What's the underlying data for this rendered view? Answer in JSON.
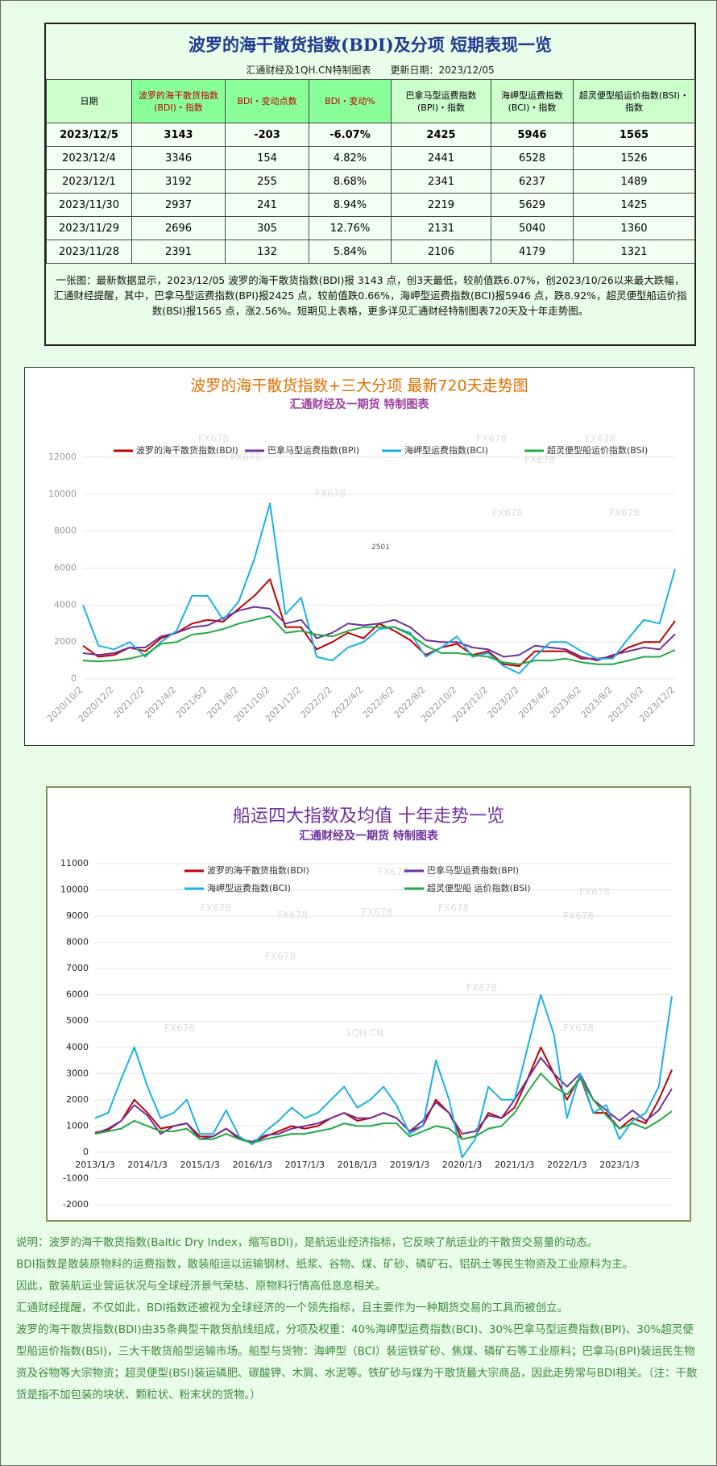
{
  "header": {
    "title": "波罗的海干散货指数(BDI)及分项  短期表现一览",
    "subtitle": "汇通财经及1QH.CN特制图表",
    "updated": "更新日期：2023/12/05"
  },
  "table": {
    "header": [
      "日期",
      "波罗的海干散货指数(BDI)・指数",
      "BDI・变动点数",
      "BDI・变动%",
      "巴拿马型运费指数(BPI)・指数",
      "海岬型运费指数(BCI)・指数",
      "超灵便型船运价指数(BSI)・指数"
    ],
    "rows": [
      [
        "2023/12/5",
        "3143",
        "-203",
        "-6.07%",
        "2425",
        "5946",
        "1565"
      ],
      [
        "2023/12/4",
        "3346",
        "154",
        "4.82%",
        "2441",
        "6528",
        "1526"
      ],
      [
        "2023/12/1",
        "3192",
        "255",
        "8.68%",
        "2341",
        "6237",
        "1489"
      ],
      [
        "2023/11/30",
        "2937",
        "241",
        "8.94%",
        "2219",
        "5629",
        "1425"
      ],
      [
        "2023/11/29",
        "2696",
        "305",
        "12.76%",
        "2131",
        "5040",
        "1360"
      ],
      [
        "2023/11/28",
        "2391",
        "132",
        "5.84%",
        "2106",
        "4179",
        "1321"
      ]
    ]
  },
  "summary": "一张图：最新数据显示，2023/12/05 波罗的海干散货指数(BDI)报 3143 点，创3天最低，较前值跌6.07%，创2023/10/26以来最大跌幅，汇通财经提醒，其中，巴拿马型运费指数(BPI)报2425 点，较前值跌0.66%，海岬型运费指数(BCI)报5946 点，跌8.92%，超灵便型船运价指数(BSI)报1565 点，涨2.56%。短期见上表格，更多详见汇通财经特制图表720天及十年走势图。",
  "chart_data": [
    {
      "type": "line",
      "title": "波罗的海干散货指数+三大分项  最新720天走势图",
      "subtitle": "汇通财经及一期货  特制图表",
      "watermarks": [
        "FX678"
      ],
      "annotations": [
        "2501"
      ],
      "categories": [
        "2020/10/2",
        null,
        "2020/12/2",
        null,
        "2021/2/2",
        null,
        "2021/4/2",
        null,
        "2021/6/2",
        null,
        "2021/8/2",
        null,
        "2021/10/2",
        null,
        "2021/12/2",
        null,
        "2022/2/2",
        null,
        "2022/4/2",
        null,
        "2022/6/2",
        null,
        "2022/8/2",
        null,
        "2022/10/2",
        null,
        "2022/12/2",
        null,
        "2023/2/2",
        null,
        "2023/4/2",
        null,
        "2023/6/2",
        null,
        "2023/8/2",
        null,
        "2023/10/2",
        null,
        "2023/12/2"
      ],
      "series": [
        {
          "name": "波罗的海干散货指数(BDI)",
          "color": "#c00000",
          "values": [
            1800,
            1200,
            1300,
            1700,
            1500,
            2200,
            2500,
            3000,
            3200,
            3100,
            3800,
            4500,
            5400,
            2800,
            2800,
            1600,
            2000,
            2500,
            2200,
            3000,
            2600,
            2100,
            1300,
            1700,
            1900,
            1300,
            1500,
            800,
            700,
            1500,
            1500,
            1500,
            1100,
            1100,
            1200,
            1700,
            2000,
            2000,
            3143
          ]
        },
        {
          "name": "巴拿马型运费指数(BPI)",
          "color": "#7030a0",
          "values": [
            1400,
            1300,
            1400,
            1700,
            1700,
            2300,
            2500,
            2800,
            2900,
            3300,
            3700,
            3900,
            3800,
            3000,
            3200,
            2200,
            2500,
            3000,
            2900,
            3000,
            3200,
            2800,
            2100,
            2000,
            2000,
            1700,
            1600,
            1200,
            1300,
            1800,
            1700,
            1600,
            1200,
            1000,
            1300,
            1500,
            1700,
            1600,
            2425
          ]
        },
        {
          "name": "海岬型运费指数(BCI)",
          "color": "#1ab0e8",
          "values": [
            4000,
            1800,
            1600,
            2000,
            1200,
            2000,
            2600,
            4500,
            4500,
            3200,
            4200,
            6500,
            9500,
            3500,
            4400,
            1200,
            1000,
            1700,
            2000,
            2700,
            2800,
            2500,
            1200,
            1700,
            2300,
            1200,
            1400,
            700,
            300,
            1200,
            2000,
            2000,
            1500,
            1100,
            1100,
            2200,
            3200,
            3000,
            5946
          ]
        },
        {
          "name": "超灵便型船运价指数(BSI)",
          "color": "#22aa44",
          "values": [
            1000,
            950,
            1000,
            1100,
            1300,
            1900,
            2000,
            2400,
            2500,
            2700,
            3000,
            3200,
            3400,
            2500,
            2600,
            2400,
            2300,
            2600,
            2800,
            2800,
            2800,
            2400,
            1800,
            1400,
            1400,
            1300,
            1200,
            900,
            800,
            1000,
            1000,
            1100,
            900,
            800,
            800,
            1000,
            1200,
            1200,
            1565
          ]
        }
      ],
      "ylim": [
        0,
        12000
      ],
      "yticks": [
        0,
        2000,
        4000,
        6000,
        8000,
        10000,
        12000
      ],
      "grid": true
    },
    {
      "type": "line",
      "title": "船运四大指数及均值 十年走势一览",
      "subtitle": "汇通财经及一期货 特制图表",
      "watermarks": [
        "FX678",
        "1QH.CN"
      ],
      "categories": [
        "2013/1/3",
        null,
        null,
        null,
        "2014/1/3",
        null,
        null,
        null,
        "2015/1/3",
        null,
        null,
        null,
        "2016/1/3",
        null,
        null,
        null,
        "2017/1/3",
        null,
        null,
        null,
        "2018/1/3",
        null,
        null,
        null,
        "2019/1/3",
        null,
        null,
        null,
        "2020/1/3",
        null,
        null,
        null,
        "2021/1/3",
        null,
        null,
        null,
        "2022/1/3",
        null,
        null,
        null,
        "2023/1/3",
        null,
        null,
        null,
        null
      ],
      "series": [
        {
          "name": "波罗的海干散货指数(BDI)",
          "color": "#c00000",
          "values": [
            750,
            850,
            1200,
            2000,
            1500,
            900,
            1000,
            1100,
            600,
            600,
            900,
            550,
            350,
            600,
            800,
            1000,
            900,
            1000,
            1300,
            1500,
            1200,
            1300,
            1500,
            1300,
            800,
            1000,
            2000,
            1500,
            500,
            600,
            1500,
            1300,
            1700,
            2800,
            4000,
            3000,
            2000,
            2900,
            1500,
            1500,
            900,
            1300,
            1100,
            2000,
            3143
          ]
        },
        {
          "name": "巴拿马型运费指数(BPI)",
          "color": "#7030a0",
          "values": [
            700,
            900,
            1200,
            1800,
            1400,
            700,
            1000,
            1100,
            500,
            600,
            900,
            500,
            400,
            650,
            700,
            900,
            1000,
            1100,
            1300,
            1500,
            1300,
            1300,
            1500,
            1300,
            800,
            1200,
            1900,
            1500,
            700,
            800,
            1400,
            1300,
            2000,
            2800,
            3600,
            3000,
            2500,
            3000,
            2000,
            1600,
            1200,
            1600,
            1200,
            1600,
            2425
          ]
        },
        {
          "name": "海岬型运费指数(BCI)",
          "color": "#1ab0e8",
          "values": [
            1300,
            1500,
            2800,
            4000,
            2500,
            1300,
            1500,
            2000,
            700,
            700,
            1600,
            600,
            300,
            800,
            1200,
            1700,
            1300,
            1500,
            2000,
            2500,
            1700,
            2000,
            2500,
            1800,
            700,
            1000,
            3500,
            2000,
            -200,
            500,
            2500,
            2000,
            2000,
            4000,
            6000,
            4500,
            1300,
            3000,
            1500,
            1800,
            500,
            1200,
            1500,
            2500,
            5946
          ]
        },
        {
          "name": "超灵便型船 运价指数(BSI)",
          "color": "#22aa44",
          "values": [
            700,
            800,
            900,
            1200,
            1000,
            800,
            800,
            900,
            500,
            500,
            700,
            500,
            350,
            500,
            600,
            700,
            700,
            800,
            900,
            1100,
            1000,
            1000,
            1100,
            1100,
            600,
            800,
            1000,
            900,
            500,
            600,
            900,
            1000,
            1500,
            2300,
            3000,
            2500,
            2200,
            2800,
            2000,
            1400,
            900,
            1100,
            900,
            1200,
            1565
          ]
        }
      ],
      "ylim": [
        -2000,
        11000
      ],
      "yticks": [
        -2000,
        -1000,
        0,
        1000,
        2000,
        3000,
        4000,
        5000,
        6000,
        7000,
        8000,
        9000,
        10000,
        11000
      ],
      "grid": true
    }
  ],
  "notes": [
    "说明：波罗的海干散货指数(Baltic Dry Index，缩写BDI)，是航运业经济指标，它反映了航运业的干散货交易量的动态。",
    "BDI指数是散装原物料的运费指数，散装船运以运输钢材、纸浆、谷物、煤、矿砂、磷矿石、铝矾土等民生物资及工业原料为主。",
    "因此，散装航运业营运状况与全球经济景气荣枯、原物料行情高低息息相关。",
    "汇通财经提醒，不仅如此，BDI指数还被视为全球经济的一个领先指标，且主要作为一种期货交易的工具而被创立。",
    "波罗的海干散货指数(BDI)由35条典型干散货航线组成，分项及权重：40%海岬型运费指数(BCI)、30%巴拿马型运费指数(BPI)、30%超灵便型船运价指数(BSI)，三大干散货船型运输市场。船型与货物：海岬型（BCI）装运铁矿砂、焦煤、磷矿石等工业原料；巴拿马(BPI)装运民生物资及谷物等大宗物资；超灵便型(BSI)装运磷肥、碳酸钾、木屑、水泥等。铁矿砂与煤为干散货最大宗商品，因此走势常与BDI相关。（注：干散货是指不加包装的块状、颗粒状、粉末状的货物。）"
  ]
}
